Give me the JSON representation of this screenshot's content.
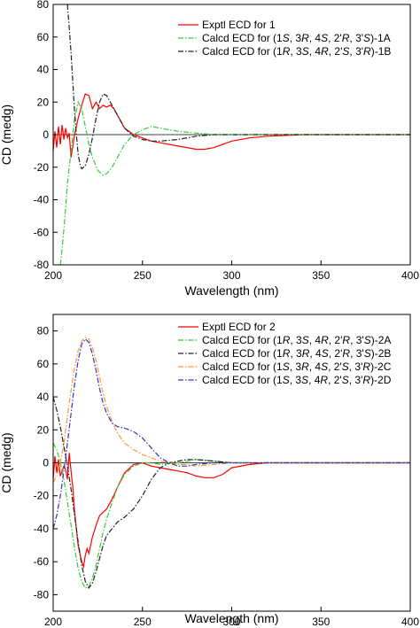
{
  "chart_data": [
    {
      "type": "line",
      "xlabel": "Wavelength (nm)",
      "ylabel": "CD (medg)",
      "xlim": [
        200,
        400
      ],
      "ylim": [
        -80,
        80
      ],
      "xticks": [
        200,
        250,
        300,
        350,
        400
      ],
      "yticks": [
        -80,
        -60,
        -40,
        -20,
        0,
        20,
        40,
        60,
        80
      ],
      "legend_position": "top-right",
      "series": [
        {
          "legend": [
            "Exptl ECD for 1"
          ],
          "color": "#ff0000",
          "dash": "solid",
          "x": [
            200,
            201,
            202,
            203,
            204,
            205,
            206,
            207,
            208,
            209,
            210,
            212,
            214,
            216,
            218,
            220,
            222,
            224,
            226,
            228,
            230,
            232,
            234,
            236,
            238,
            240,
            245,
            250,
            255,
            260,
            270,
            280,
            285,
            290,
            300,
            310,
            320,
            340,
            360,
            380,
            400
          ],
          "values": [
            -10,
            2,
            -8,
            5,
            -6,
            6,
            -3,
            4,
            -2,
            1,
            -14,
            0,
            10,
            18,
            25,
            24,
            16,
            20,
            16,
            18,
            17,
            18,
            16,
            12,
            8,
            4,
            0,
            -2,
            -4,
            -5,
            -7,
            -9,
            -9,
            -8,
            -4,
            -2,
            -1,
            0,
            0,
            0,
            0
          ]
        },
        {
          "legend": [
            "Calcd ECD for (1",
            "S",
            ", 3",
            "R",
            ", 4",
            "S",
            ", 2'",
            "R",
            ", 3'",
            "S",
            ")-1A"
          ],
          "color": "#33cc33",
          "dash": "dashdot",
          "x": [
            204,
            205,
            206,
            207,
            208,
            210,
            212,
            214,
            216,
            218,
            220,
            222,
            225,
            228,
            230,
            233,
            236,
            240,
            245,
            250,
            255,
            260,
            265,
            270,
            280,
            290,
            300,
            320,
            340,
            360,
            380,
            400
          ],
          "values": [
            -80,
            -70,
            -58,
            -45,
            -30,
            -10,
            10,
            20,
            16,
            5,
            -6,
            -14,
            -22,
            -25,
            -24,
            -20,
            -14,
            -6,
            0,
            3,
            5,
            4,
            3,
            2,
            1,
            0,
            0,
            0,
            0,
            0,
            0,
            0
          ],
          "clip_below_axis": true
        },
        {
          "legend": [
            "Calcd ECD for (1",
            "R",
            ", 3",
            "S",
            ", 4",
            "R",
            ", 2'",
            "S",
            ", 3'",
            "R",
            ")-1B"
          ],
          "color": "#222222",
          "dash": "dashdot",
          "x": [
            208,
            209,
            210,
            211,
            212,
            213,
            214,
            215,
            216,
            218,
            220,
            222,
            224,
            226,
            228,
            230,
            232,
            235,
            238,
            240,
            245,
            250,
            255,
            260,
            270,
            280,
            290,
            300,
            320,
            340,
            360,
            380,
            400
          ],
          "values": [
            80,
            66,
            50,
            32,
            14,
            0,
            -12,
            -18,
            -21,
            -19,
            -12,
            -2,
            10,
            20,
            25,
            24,
            20,
            14,
            8,
            4,
            -1,
            -3,
            -4,
            -4,
            -3,
            -1,
            0,
            0,
            0,
            0,
            0,
            0,
            0
          ]
        }
      ]
    },
    {
      "type": "line",
      "xlabel": "Wavelength (nm)",
      "ylabel": "CD (medg)",
      "xlim": [
        200,
        400
      ],
      "ylim": [
        -90,
        90
      ],
      "xticks": [
        200,
        250,
        300,
        350,
        400
      ],
      "yticks": [
        -80,
        -60,
        -40,
        -20,
        0,
        20,
        40,
        60,
        80
      ],
      "legend_position": "top-right",
      "series": [
        {
          "legend": [
            "Exptl ECD for 2"
          ],
          "color": "#ff0000",
          "dash": "solid",
          "x": [
            200,
            201,
            202,
            203,
            204,
            205,
            206,
            207,
            208,
            209,
            210,
            211,
            212,
            213,
            214,
            215,
            216,
            217,
            218,
            219,
            220,
            222,
            224,
            226,
            228,
            230,
            233,
            236,
            240,
            245,
            250,
            255,
            260,
            265,
            270,
            275,
            280,
            285,
            290,
            295,
            300,
            310,
            320,
            340,
            360,
            380,
            400
          ],
          "values": [
            -10,
            4,
            -6,
            2,
            -8,
            -5,
            -2,
            -4,
            -10,
            6,
            -5,
            -15,
            -30,
            -40,
            -50,
            -55,
            -60,
            -63,
            -56,
            -52,
            -55,
            -45,
            -38,
            -32,
            -30,
            -28,
            -22,
            -15,
            -6,
            -1,
            0,
            -2,
            -3,
            -4,
            -5,
            -6,
            -8,
            -9,
            -9,
            -7,
            -3,
            -1,
            0,
            0,
            0,
            0,
            0
          ]
        },
        {
          "legend": [
            "Calcd ECD for (1",
            "R",
            ", 3",
            "S",
            ", 4",
            "R",
            ", 2'",
            "R",
            ", 3'",
            "S",
            ")-2A"
          ],
          "color": "#33cc33",
          "dash": "dashdot",
          "x": [
            200,
            202,
            204,
            206,
            208,
            210,
            212,
            214,
            216,
            218,
            220,
            222,
            224,
            226,
            228,
            230,
            233,
            236,
            240,
            245,
            250,
            255,
            260,
            270,
            280,
            290,
            300,
            320,
            340,
            360,
            380,
            400
          ],
          "values": [
            12,
            8,
            0,
            -10,
            -24,
            -38,
            -52,
            -64,
            -72,
            -76,
            -75,
            -70,
            -62,
            -52,
            -42,
            -34,
            -24,
            -15,
            -7,
            -2,
            0,
            0,
            -1,
            0,
            2,
            1,
            0,
            0,
            0,
            0,
            0,
            0
          ]
        },
        {
          "legend": [
            "Calcd ECD for (1",
            "R",
            ", 3",
            "R",
            ", 4",
            "S",
            ", 2'",
            "R",
            ", 3'",
            "S",
            ")-2B"
          ],
          "color": "#222222",
          "dash": "dashdot",
          "x": [
            200,
            202,
            204,
            206,
            208,
            210,
            212,
            214,
            216,
            218,
            220,
            222,
            224,
            226,
            228,
            230,
            233,
            236,
            240,
            245,
            250,
            255,
            260,
            265,
            270,
            275,
            280,
            290,
            300,
            320,
            340,
            360,
            380,
            400
          ],
          "values": [
            40,
            32,
            22,
            10,
            -2,
            -16,
            -32,
            -48,
            -62,
            -72,
            -76,
            -73,
            -66,
            -58,
            -50,
            -44,
            -40,
            -36,
            -33,
            -28,
            -20,
            -10,
            -3,
            0,
            1,
            2,
            2,
            1,
            0,
            0,
            0,
            0,
            0,
            0
          ]
        },
        {
          "legend": [
            "Calcd ECD for (1",
            "S",
            ", 3",
            "R",
            ", 4",
            "S",
            ", 2'",
            "S",
            ", 3'",
            "R",
            ")-2C"
          ],
          "color": "#ff9933",
          "dash": "dashdot",
          "x": [
            200,
            202,
            204,
            206,
            208,
            210,
            212,
            214,
            216,
            218,
            220,
            222,
            224,
            226,
            228,
            230,
            233,
            236,
            240,
            245,
            250,
            255,
            260,
            265,
            270,
            275,
            280,
            290,
            300,
            320,
            340,
            360,
            380,
            400
          ],
          "values": [
            -12,
            -8,
            0,
            12,
            28,
            44,
            58,
            68,
            74,
            76,
            75,
            70,
            62,
            52,
            42,
            34,
            25,
            18,
            12,
            8,
            5,
            3,
            1,
            0,
            -1,
            -1,
            -2,
            -1,
            0,
            0,
            0,
            0,
            0,
            0
          ]
        },
        {
          "legend": [
            "Calcd ECD for (1",
            "S",
            ", 3",
            "S",
            ", 4",
            "R",
            ", 2'",
            "S",
            ", 3'",
            "R",
            ")-2D"
          ],
          "color": "#3333cc",
          "dash": "dashdot",
          "x": [
            200,
            202,
            204,
            206,
            208,
            210,
            212,
            214,
            216,
            218,
            220,
            222,
            224,
            226,
            228,
            230,
            233,
            236,
            240,
            245,
            250,
            255,
            260,
            265,
            270,
            275,
            280,
            290,
            300,
            320,
            340,
            360,
            380,
            400
          ],
          "values": [
            -40,
            -32,
            -20,
            -5,
            12,
            30,
            48,
            62,
            72,
            75,
            73,
            66,
            56,
            45,
            36,
            30,
            24,
            22,
            21,
            19,
            15,
            9,
            3,
            0,
            -2,
            -2,
            -1,
            0,
            0,
            0,
            0,
            0,
            0,
            0
          ]
        }
      ]
    }
  ]
}
